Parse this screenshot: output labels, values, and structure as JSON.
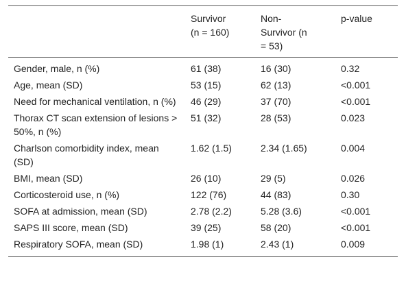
{
  "table": {
    "header": [
      "",
      "Survivor (n = 160)",
      "Non-Survivor (n = 53)",
      "p-value"
    ],
    "rows": [
      [
        "Gender, male, n (%)",
        "61 (38)",
        "16 (30)",
        "0.32"
      ],
      [
        "Age, mean (SD)",
        "53 (15)",
        "62 (13)",
        "<0.001"
      ],
      [
        "Need for mechanical ventilation, n (%)",
        "46 (29)",
        "37 (70)",
        "<0.001"
      ],
      [
        "Thorax CT scan extension of lesions > 50%, n (%)",
        "51 (32)",
        "28 (53)",
        "0.023"
      ],
      [
        "Charlson comorbidity index, mean (SD)",
        "1.62 (1.5)",
        "2.34 (1.65)",
        "0.004"
      ],
      [
        "BMI, mean (SD)",
        "26 (10)",
        "29 (5)",
        "0.026"
      ],
      [
        "Corticosteroid use, n (%)",
        "122 (76)",
        "44 (83)",
        "0.30"
      ],
      [
        "SOFA at admission, mean (SD)",
        "2.78 (2.2)",
        "5.28 (3.6)",
        "<0.001"
      ],
      [
        "SAPS III score, mean (SD)",
        "39 (25)",
        "58 (20)",
        "<0.001"
      ],
      [
        "Respiratory SOFA, mean (SD)",
        "1.98 (1)",
        "2.43 (1)",
        "0.009"
      ]
    ]
  }
}
